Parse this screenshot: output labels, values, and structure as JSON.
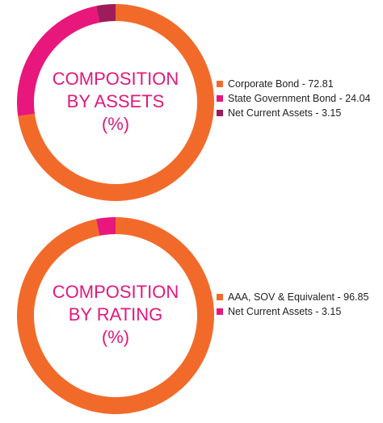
{
  "chart_data": [
    {
      "type": "donut",
      "title": [
        "COMPOSITION",
        "BY ASSETS",
        "(%)"
      ],
      "categories": [
        "Corporate Bond - 72.81",
        "State Government Bond - 24.04",
        "Net Current Assets - 3.15"
      ],
      "values": [
        72.81,
        24.04,
        3.15
      ],
      "colors": [
        "#f26a2a",
        "#e8177b",
        "#9e1b5c"
      ]
    },
    {
      "type": "donut",
      "title": [
        "COMPOSITION",
        "BY RATING",
        "(%)"
      ],
      "categories": [
        "AAA, SOV & Equivalent - 96.85",
        "Net Current Assets - 3.15"
      ],
      "values": [
        96.85,
        3.15
      ],
      "colors": [
        "#f26a2a",
        "#e8177b"
      ]
    }
  ]
}
